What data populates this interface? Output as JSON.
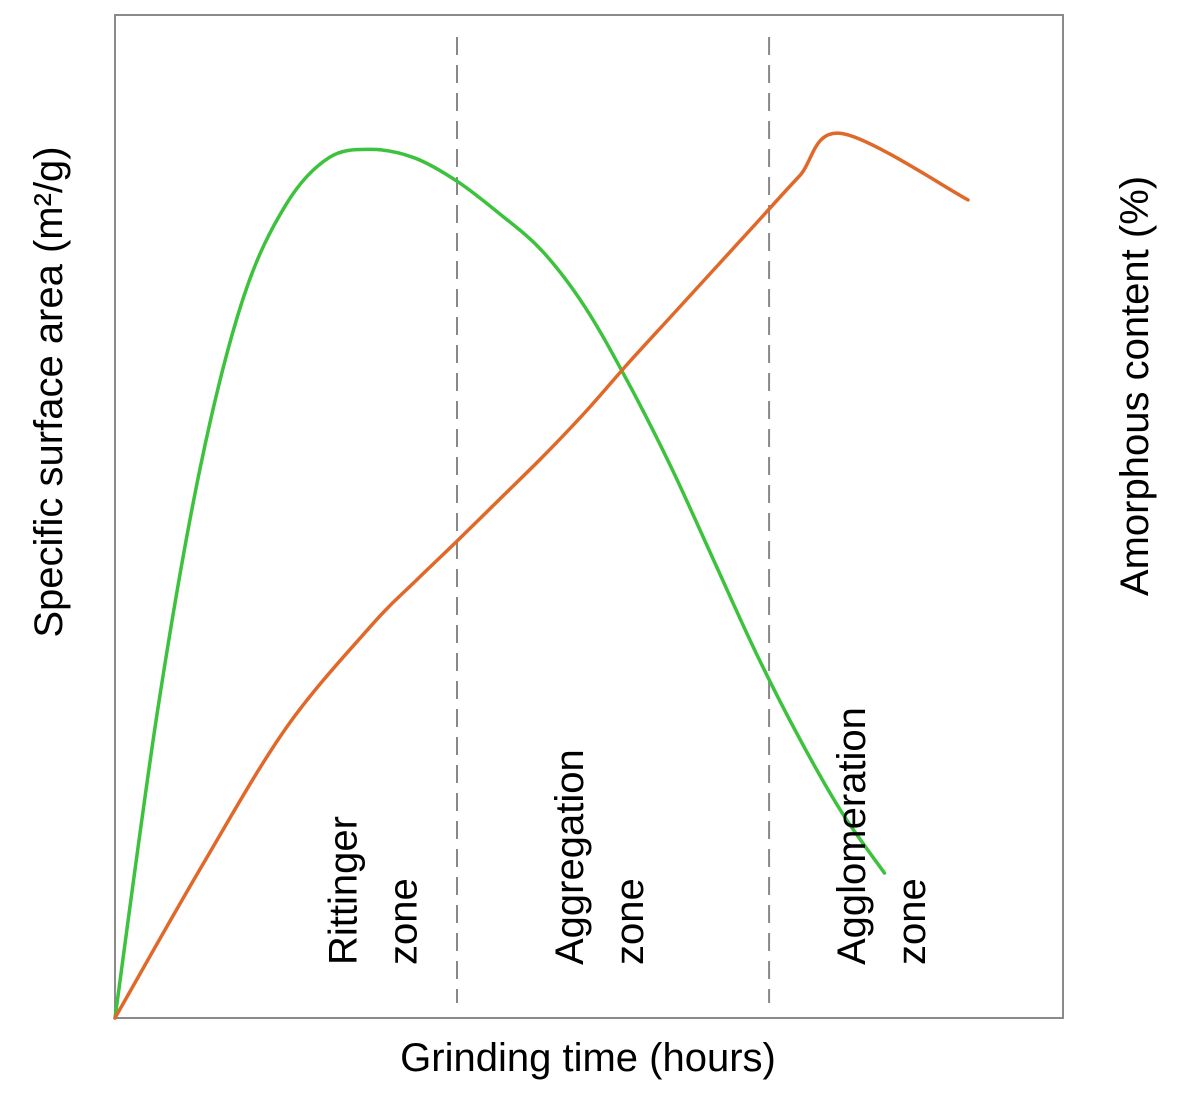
{
  "chart_data": {
    "type": "line",
    "title": "",
    "xlabel": "Grinding time (hours)",
    "ylabel_left": "Specific surface area (m²/g)",
    "ylabel_right": "Amorphous content (%)",
    "xlim": [
      0,
      100
    ],
    "ylim": [
      0,
      100
    ],
    "show_ticks": false,
    "grid": false,
    "legend": "none",
    "series": [
      {
        "color": "#3cc23c",
        "axis": "left",
        "x": [
          0,
          5,
          10,
          15,
          20,
          25,
          30,
          35,
          40,
          45,
          50,
          55,
          60,
          65,
          70,
          75,
          80,
          85,
          90
        ],
        "y": [
          0,
          33,
          59,
          77,
          87,
          92,
          92.9,
          92,
          89.5,
          86,
          82,
          76,
          68,
          59,
          49,
          39,
          30,
          22,
          15.5
        ]
      },
      {
        "color": "#e0692a",
        "axis": "right",
        "x": [
          0,
          10,
          20,
          30,
          35,
          40,
          45,
          50,
          55,
          60,
          65,
          70,
          75,
          80,
          85,
          90
        ],
        "y": [
          0,
          16,
          31,
          42,
          46.6,
          51,
          55.5,
          60,
          64.8,
          70,
          75,
          80,
          85,
          90,
          94.6,
          87.5
        ]
      }
    ],
    "vlines": [
      {
        "x": 40,
        "style": "dashed",
        "color": "#888888"
      },
      {
        "x": 76.5,
        "style": "dashed",
        "color": "#888888"
      }
    ],
    "zones": [
      {
        "x": 30,
        "line1": "Rittinger",
        "line2": "zone"
      },
      {
        "x": 56.5,
        "line1": "Aggregation",
        "line2": "zone"
      },
      {
        "x": 89.5,
        "line1": "Agglomeration",
        "line2": "zone"
      }
    ]
  }
}
